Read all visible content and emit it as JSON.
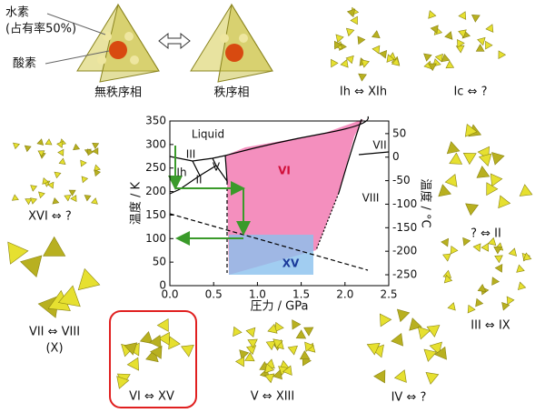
{
  "figure": {
    "hydrogen": [
      "水素",
      "(占有率50%)"
    ],
    "oxygen": "酸素",
    "disordered": "無秩序相",
    "ordered": "秩序相",
    "pairs": {
      "ih": "Ih ⇔ XIh",
      "ic": "Ic ⇔ ?",
      "xvi": "XVI ⇔ ?",
      "ii": "? ⇔ II",
      "vii": "VII ⇔ VIII",
      "x": "(X)",
      "iii": "III ⇔ IX",
      "vi": "VI ⇔ XV",
      "v": "V ⇔ XIII",
      "iv": "IV ⇔ ?"
    }
  },
  "chart_data": {
    "type": "phase",
    "xlabel": "圧力 / GPa",
    "ylabel": "温度 / K",
    "y2label": "温度 / °C",
    "xlim": [
      0,
      2.5
    ],
    "ylim": [
      0,
      350
    ],
    "y2lim": [
      -273.15,
      76.85
    ],
    "xticks": [
      {
        "value": 0,
        "label": "0.0"
      },
      {
        "value": 0.5,
        "label": "0.5"
      },
      {
        "value": 1,
        "label": "1.0"
      },
      {
        "value": 1.5,
        "label": "1.5"
      },
      {
        "value": 2,
        "label": "2.0"
      },
      {
        "value": 2.5,
        "label": "2.5"
      }
    ],
    "yticks": [
      0,
      50,
      100,
      150,
      200,
      250,
      300,
      350
    ],
    "y2ticks": [
      50,
      0,
      -50,
      -100,
      -150,
      -200,
      -250
    ],
    "phases": [
      "Liquid",
      "III",
      "Ih",
      "V",
      "II",
      "VI",
      "VII",
      "VIII",
      "XV"
    ]
  }
}
